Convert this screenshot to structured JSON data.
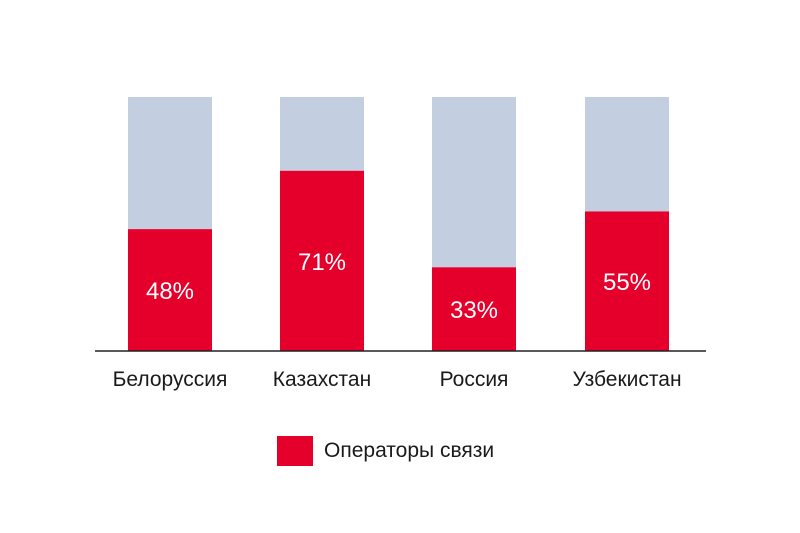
{
  "chart_data": {
    "type": "bar",
    "stacked": true,
    "categories": [
      "Белоруссия",
      "Казахстан",
      "Россия",
      "Узбекистан"
    ],
    "series": [
      {
        "name": "Операторы связи",
        "values": [
          48,
          71,
          33,
          55
        ],
        "color": "#e4002b"
      },
      {
        "values": [
          52,
          29,
          67,
          45
        ],
        "color": "#c3cfe0"
      }
    ],
    "data_labels": [
      "48%",
      "71%",
      "33%",
      "55%"
    ],
    "ylim": [
      0,
      100
    ],
    "grid": false,
    "legend_position": "bottom"
  },
  "legend": {
    "label": "Операторы связи",
    "color": "#e4002b"
  }
}
